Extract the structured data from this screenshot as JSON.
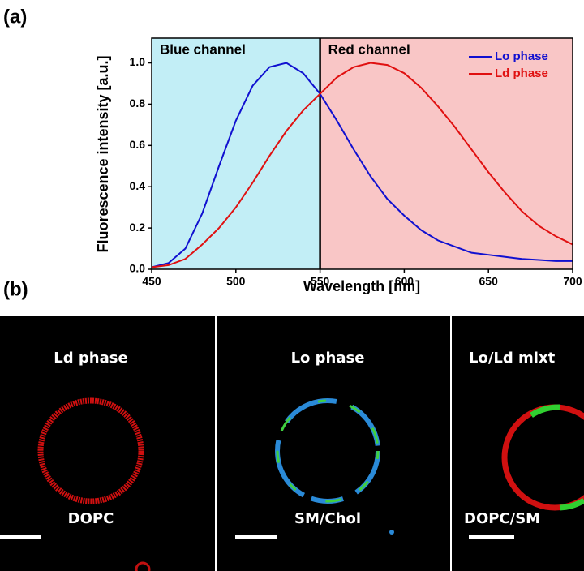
{
  "panel_a_label": "(a)",
  "chart_data": {
    "type": "line",
    "x_label": "Wavelength [nm]",
    "y_label": "Fluorescence intensity [a.u.]",
    "x": [
      450,
      460,
      470,
      480,
      490,
      500,
      510,
      520,
      530,
      540,
      550,
      560,
      570,
      580,
      590,
      600,
      610,
      620,
      630,
      640,
      650,
      660,
      670,
      680,
      690,
      700
    ],
    "series": [
      {
        "name": "Lo phase",
        "color": "#1010d0",
        "values": [
          0.01,
          0.03,
          0.1,
          0.27,
          0.5,
          0.72,
          0.89,
          0.98,
          1.0,
          0.95,
          0.85,
          0.72,
          0.58,
          0.45,
          0.34,
          0.26,
          0.19,
          0.14,
          0.11,
          0.08,
          0.07,
          0.06,
          0.05,
          0.045,
          0.04,
          0.04
        ]
      },
      {
        "name": "Ld phase",
        "color": "#e01010",
        "values": [
          0.01,
          0.02,
          0.05,
          0.12,
          0.2,
          0.3,
          0.42,
          0.55,
          0.67,
          0.77,
          0.85,
          0.93,
          0.98,
          1.0,
          0.99,
          0.95,
          0.88,
          0.79,
          0.69,
          0.58,
          0.47,
          0.37,
          0.28,
          0.21,
          0.16,
          0.12
        ]
      }
    ],
    "regions": [
      {
        "label": "Blue channel",
        "range": [
          450,
          550
        ],
        "color": "#c2eef6"
      },
      {
        "label": "Red channel",
        "range": [
          550,
          700
        ],
        "color": "#f9c6c6"
      }
    ],
    "xlim": [
      450,
      700
    ],
    "xticks": [
      450,
      500,
      550,
      600,
      650,
      700
    ],
    "ylim": [
      0,
      1.12
    ],
    "yticks": [
      {
        "value": 0,
        "label": "0.0"
      },
      {
        "value": 0.2,
        "label": "0.2"
      },
      {
        "value": 0.4,
        "label": "0.4"
      },
      {
        "value": 0.6,
        "label": "0.6"
      },
      {
        "value": 0.8,
        "label": "0.8"
      },
      {
        "value": 1,
        "label": "1.0"
      }
    ],
    "legend": "upper-right"
  },
  "panel_b_label": "(b)",
  "images": [
    {
      "title": "Ld phase",
      "label": "DOPC"
    },
    {
      "title": "Lo phase",
      "label": "SM/Chol"
    },
    {
      "title": "Lo/Ld mixt",
      "label": "DOPC/SM"
    }
  ]
}
